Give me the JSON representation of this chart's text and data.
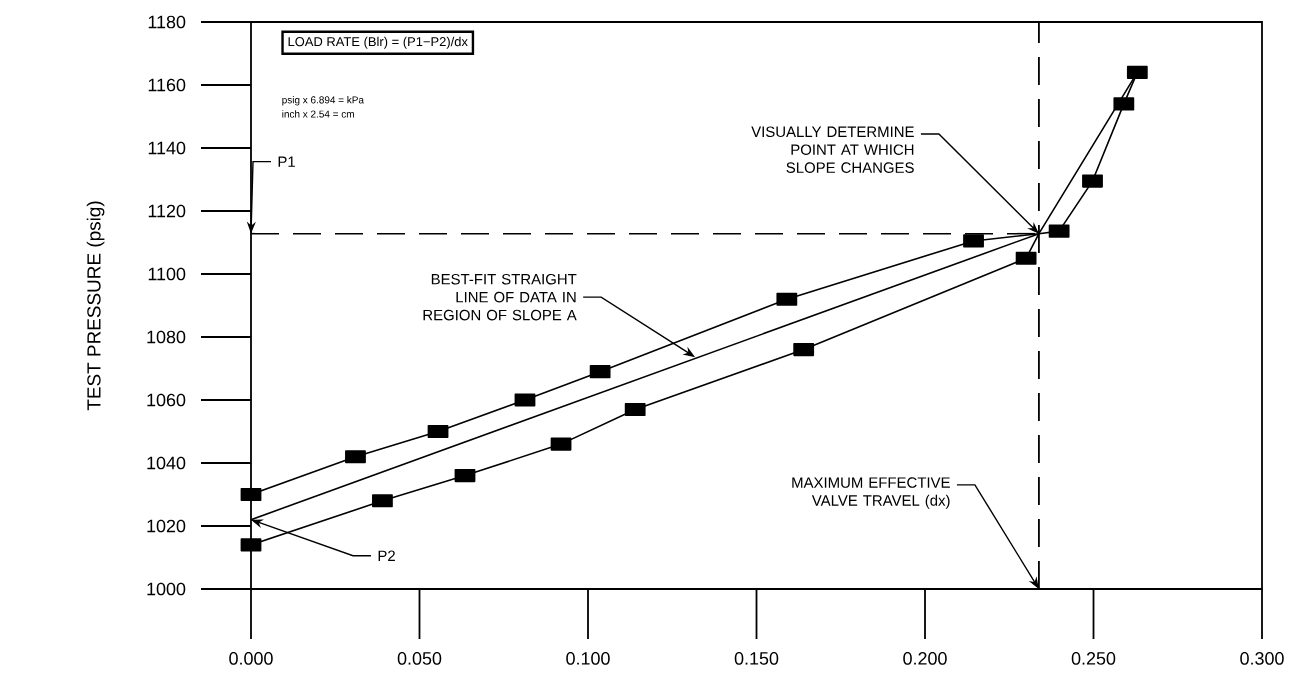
{
  "chart_data": {
    "type": "line",
    "ylabel": "TEST PRESSURE (psig)",
    "xlim": [
      0,
      0.3
    ],
    "ylim": [
      1000,
      1180
    ],
    "xticks": [
      {
        "value": 0,
        "label": "0.000"
      },
      {
        "value": 0.05,
        "label": "0.050"
      },
      {
        "value": 0.1,
        "label": "0.100"
      },
      {
        "value": 0.15,
        "label": "0.150"
      },
      {
        "value": 0.2,
        "label": "0.200"
      },
      {
        "value": 0.25,
        "label": "0.250"
      },
      {
        "value": 0.3,
        "label": "0.300"
      }
    ],
    "yticks": [
      1000,
      1020,
      1040,
      1060,
      1080,
      1100,
      1120,
      1140,
      1160,
      1180
    ],
    "marker": "square",
    "line_style": "solid",
    "series": [
      {
        "color": "#000000",
        "x": [
          0,
          0.031,
          0.0555,
          0.0813,
          0.1036,
          0.159,
          0.2144
        ],
        "values": [
          1030,
          1042,
          1050,
          1060,
          1069,
          1092,
          1110.5
        ]
      },
      {
        "color": "#000000",
        "x": [
          0,
          0.039,
          0.0635,
          0.092,
          0.114,
          0.164,
          0.23
        ],
        "values": [
          1014,
          1028,
          1036,
          1046,
          1057,
          1076,
          1105
        ]
      },
      {
        "color": "#000000",
        "x": [
          0.2398,
          0.2497,
          0.259,
          0.263
        ],
        "values": [
          1113.6,
          1129.5,
          1154,
          1164
        ]
      },
      {
        "color": "#000000",
        "marker": "none",
        "x": [
          0.2144,
          0.2338,
          0.263
        ],
        "values": [
          1110.5,
          1112.8,
          1164
        ]
      },
      {
        "color": "#000000",
        "marker": "none",
        "x": [
          0.23,
          0.2338,
          0.2398
        ],
        "values": [
          1105,
          1112.8,
          1113.6
        ]
      },
      {
        "color": "#000000",
        "marker": "none",
        "x": [
          0,
          0.2338
        ],
        "values": [
          1022,
          1112.8
        ]
      },
      {
        "color": "#000000",
        "marker": "none",
        "line_style": "dashed",
        "x": [
          0,
          0.2338
        ],
        "values": [
          1112.8,
          1112.8
        ]
      }
    ],
    "ref_lines": [
      {
        "axis": "x",
        "value": 0.2338,
        "line_style": "dashed"
      }
    ],
    "annotations": [
      "LOAD RATE (Blr) = (P1−P2)/dx",
      "psig x 6.894 = kPa",
      "inch x 2.54 = cm",
      {
        "text": "P1",
        "x": 0,
        "y": 1112.8
      },
      {
        "text": "P2",
        "x": 0,
        "y": 1022
      },
      {
        "text": "BEST-FIT STRAIGHT LINE OF DATA IN REGION OF SLOPE A",
        "x": 0.1318,
        "y": 1073.6
      },
      {
        "text": "VISUALLY DETERMINE POINT AT WHICH SLOPE CHANGES",
        "x": 0.2338,
        "y": 1112.8
      },
      {
        "text": "MAXIMUM EFFECTIVE VALVE TRAVEL (dx)",
        "x": 0.2338,
        "y": 1000
      }
    ]
  }
}
